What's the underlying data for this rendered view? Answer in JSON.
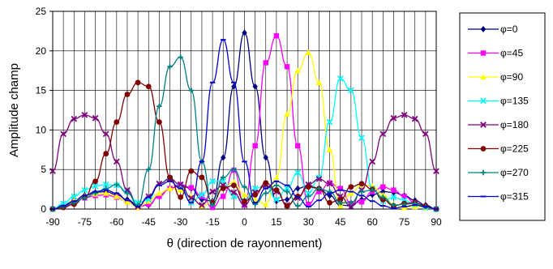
{
  "chart_data": {
    "type": "line",
    "title": "",
    "xlabel": "θ (direction de rayonnement)",
    "ylabel": "Amplitude champ",
    "xlim": [
      -90,
      90
    ],
    "ylim": [
      0,
      25
    ],
    "x_ticks": [
      "-90",
      "-75",
      "-60",
      "-45",
      "-30",
      "-15",
      "0",
      "15",
      "30",
      "45",
      "60",
      "75",
      "90"
    ],
    "y_ticks": [
      "0",
      "5",
      "10",
      "15",
      "20",
      "25"
    ],
    "grid": true,
    "legend_position": "right",
    "x": [
      -90,
      -85,
      -80,
      -75,
      -70,
      -65,
      -60,
      -55,
      -50,
      -45,
      -40,
      -35,
      -30,
      -25,
      -20,
      -15,
      -10,
      -5,
      0,
      5,
      10,
      15,
      20,
      25,
      30,
      35,
      40,
      45,
      50,
      55,
      60,
      65,
      70,
      75,
      80,
      85,
      90
    ],
    "series": [
      {
        "name": "φ=0",
        "color": "#000080",
        "marker": "diamond",
        "values": [
          0,
          0.5,
          1.1,
          1.7,
          2.1,
          2.2,
          1.8,
          1.2,
          0.4,
          0.5,
          1.7,
          2.6,
          3.0,
          2.6,
          1.2,
          1.0,
          6.5,
          15.5,
          22.3,
          15.5,
          6.5,
          1.0,
          1.2,
          2.6,
          3.0,
          2.6,
          1.7,
          0.5,
          0.4,
          1.2,
          1.8,
          2.2,
          2.1,
          1.7,
          1.1,
          0.5,
          0
        ]
      },
      {
        "name": "φ=45",
        "color": "#FF00FF",
        "marker": "square",
        "values": [
          0,
          0.3,
          0.9,
          1.4,
          1.7,
          1.8,
          1.5,
          0.9,
          0.2,
          0.6,
          1.6,
          2.6,
          3.1,
          2.7,
          1.6,
          0.2,
          1.6,
          4.9,
          0.5,
          8.0,
          18.5,
          21.9,
          18.0,
          8.0,
          0.6,
          2.2,
          3.3,
          2.6,
          0.7,
          0.9,
          2.2,
          2.8,
          2.4,
          1.6,
          0.8,
          0.3,
          0
        ]
      },
      {
        "name": "φ=90",
        "color": "#FFFF00",
        "marker": "triangle",
        "values": [
          0,
          0.4,
          1.1,
          1.6,
          1.9,
          2.0,
          1.6,
          0.9,
          0.2,
          1.0,
          2.0,
          2.6,
          2.4,
          1.6,
          0.4,
          0.9,
          2.7,
          3.4,
          1.8,
          1.2,
          0.6,
          4.0,
          12.0,
          17.5,
          19.8,
          16.0,
          7.5,
          0.4,
          2.0,
          3.1,
          2.9,
          1.8,
          0.6,
          0.2,
          0.3,
          0.2,
          0
        ]
      },
      {
        "name": "φ=135",
        "color": "#00FFFF",
        "marker": "x",
        "values": [
          0,
          0.7,
          1.6,
          2.4,
          2.9,
          3.1,
          3.0,
          2.2,
          0.8,
          1.2,
          3.2,
          3.9,
          3.0,
          0.8,
          1.8,
          3.5,
          3.5,
          1.6,
          1.0,
          2.6,
          3.0,
          1.2,
          2.6,
          4.6,
          2.0,
          4.0,
          11.0,
          16.5,
          15.0,
          9.0,
          2.6,
          1.0,
          1.5,
          1.1,
          0.6,
          0.2,
          0
        ]
      },
      {
        "name": "φ=180",
        "color": "#800080",
        "marker": "x",
        "values": [
          4.8,
          9.5,
          11.4,
          11.9,
          11.5,
          9.5,
          6.0,
          2.4,
          0.3,
          1.6,
          3.2,
          3.8,
          3.1,
          1.4,
          0.5,
          2.2,
          3.0,
          2.1,
          0.5,
          2.1,
          3.0,
          2.2,
          0.5,
          1.4,
          3.1,
          3.8,
          3.2,
          1.6,
          0.3,
          2.4,
          6.0,
          9.5,
          11.5,
          11.9,
          11.4,
          9.5,
          4.8
        ]
      },
      {
        "name": "φ=225",
        "color": "#800000",
        "marker": "circle",
        "values": [
          0,
          0.2,
          0.6,
          1.5,
          3.5,
          7.0,
          11.0,
          14.5,
          16.0,
          15.5,
          11.0,
          4.0,
          1.5,
          4.8,
          4.0,
          0.8,
          2.6,
          3.0,
          1.0,
          1.8,
          3.3,
          2.4,
          0.4,
          1.6,
          2.8,
          2.6,
          0.8,
          1.2,
          2.8,
          3.2,
          2.5,
          1.2,
          0.4,
          0.7,
          0.8,
          0.4,
          0
        ]
      },
      {
        "name": "φ=270",
        "color": "#008080",
        "marker": "plus",
        "values": [
          0,
          0.3,
          0.8,
          1.4,
          2.0,
          2.6,
          3.1,
          2.0,
          0.5,
          5.0,
          13.0,
          18.0,
          19.2,
          15.0,
          6.0,
          0.5,
          4.0,
          5.0,
          2.8,
          0.6,
          2.0,
          3.0,
          2.2,
          0.4,
          1.6,
          2.6,
          2.2,
          0.8,
          0.8,
          2.2,
          2.4,
          1.5,
          0.5,
          0.6,
          0.7,
          0.3,
          0
        ]
      },
      {
        "name": "φ=315",
        "color": "#0000CC",
        "marker": "dash",
        "values": [
          0,
          0.4,
          1.0,
          1.7,
          2.2,
          2.4,
          2.0,
          1.1,
          0.3,
          1.5,
          3.0,
          3.5,
          2.6,
          0.8,
          6.0,
          16.0,
          21.4,
          16.0,
          6.0,
          0.8,
          2.6,
          3.5,
          3.0,
          1.5,
          0.3,
          1.1,
          2.0,
          2.4,
          2.2,
          1.7,
          1.0,
          0.4,
          0.1,
          0.3,
          0.5,
          0.3,
          0
        ]
      }
    ]
  }
}
